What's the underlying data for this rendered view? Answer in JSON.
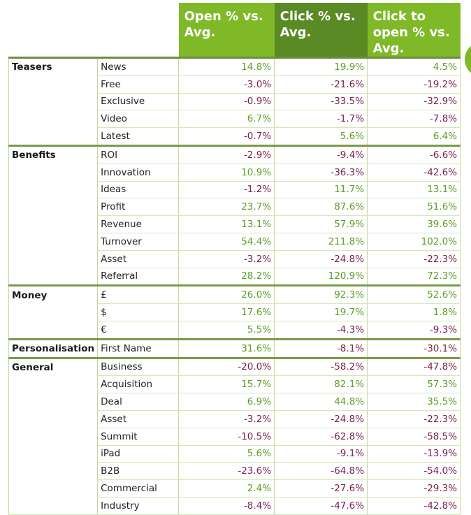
{
  "columns": {
    "headers": [
      "Open % vs. Avg.",
      "Click % vs. Avg.",
      "Click to open % vs. Avg."
    ]
  },
  "colors": {
    "header_open": "#7fb928",
    "header_click": "#5a8a24",
    "header_cto": "#7fb928",
    "positive": "#5a9e22",
    "negative": "#7c1d48"
  },
  "groups": [
    {
      "category": "Teasers",
      "rows": [
        {
          "keyword": "News",
          "open": "14.8%",
          "click": "19.9%",
          "cto": "4.5%"
        },
        {
          "keyword": "Free",
          "open": "-3.0%",
          "click": "-21.6%",
          "cto": "-19.2%"
        },
        {
          "keyword": "Exclusive",
          "open": "-0.9%",
          "click": "-33.5%",
          "cto": "-32.9%"
        },
        {
          "keyword": "Video",
          "open": "6.7%",
          "click": "-1.7%",
          "cto": "-7.8%"
        },
        {
          "keyword": "Latest",
          "open": "-0.7%",
          "click": "5.6%",
          "cto": "6.4%"
        }
      ]
    },
    {
      "category": "Benefits",
      "rows": [
        {
          "keyword": "ROI",
          "open": "-2.9%",
          "click": "-9.4%",
          "cto": "-6.6%"
        },
        {
          "keyword": "Innovation",
          "open": "10.9%",
          "click": "-36.3%",
          "cto": "-42.6%"
        },
        {
          "keyword": "Ideas",
          "open": "-1.2%",
          "click": "11.7%",
          "cto": "13.1%"
        },
        {
          "keyword": "Profit",
          "open": "23.7%",
          "click": "87.6%",
          "cto": "51.6%"
        },
        {
          "keyword": "Revenue",
          "open": "13.1%",
          "click": "57.9%",
          "cto": "39.6%"
        },
        {
          "keyword": "Turnover",
          "open": "54.4%",
          "click": "211.8%",
          "cto": "102.0%"
        },
        {
          "keyword": "Asset",
          "open": "-3.2%",
          "click": "-24.8%",
          "cto": "-22.3%"
        },
        {
          "keyword": "Referral",
          "open": "28.2%",
          "click": "120.9%",
          "cto": "72.3%"
        }
      ]
    },
    {
      "category": "Money",
      "rows": [
        {
          "keyword": "£",
          "open": "26.0%",
          "click": "92.3%",
          "cto": "52.6%"
        },
        {
          "keyword": "$",
          "open": "17.6%",
          "click": "19.7%",
          "cto": "1.8%"
        },
        {
          "keyword": "€",
          "open": "5.5%",
          "click": "-4.3%",
          "cto": "-9.3%"
        }
      ]
    },
    {
      "category": "Personalisation",
      "rows": [
        {
          "keyword": "First Name",
          "open": "31.6%",
          "click": "-8.1%",
          "cto": "-30.1%"
        }
      ]
    },
    {
      "category": "General",
      "rows": [
        {
          "keyword": "Business",
          "open": "-20.0%",
          "click": "-58.2%",
          "cto": "-47.8%"
        },
        {
          "keyword": "Acquisition",
          "open": "15.7%",
          "click": "82.1%",
          "cto": "57.3%"
        },
        {
          "keyword": "Deal",
          "open": "6.9%",
          "click": "44.8%",
          "cto": "35.5%"
        },
        {
          "keyword": "Asset",
          "open": "-3.2%",
          "click": "-24.8%",
          "cto": "-22.3%"
        },
        {
          "keyword": "Summit",
          "open": "-10.5%",
          "click": "-62.8%",
          "cto": "-58.5%"
        },
        {
          "keyword": "iPad",
          "open": "5.6%",
          "click": "-9.1%",
          "cto": "-13.9%"
        },
        {
          "keyword": "B2B",
          "open": "-23.6%",
          "click": "-64.8%",
          "cto": "-54.0%"
        },
        {
          "keyword": "Commercial",
          "open": "2.4%",
          "click": "-27.6%",
          "cto": "-29.3%"
        },
        {
          "keyword": "Industry",
          "open": "-8.4%",
          "click": "-47.6%",
          "cto": "-42.8%"
        }
      ]
    }
  ]
}
